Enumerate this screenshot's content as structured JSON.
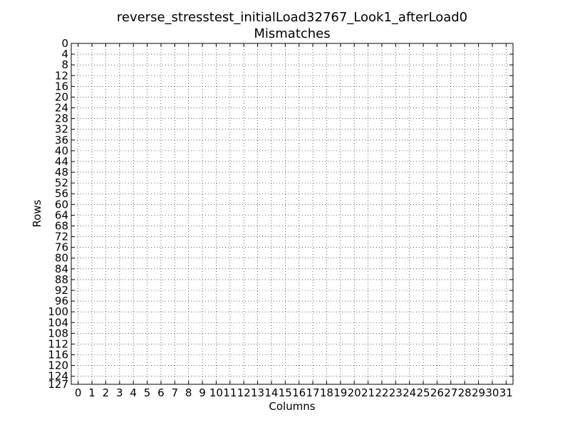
{
  "chart_data": {
    "type": "heatmap",
    "title_line1": "reverse_stresstest_initialLoad32767_Look1_afterLoad0",
    "title_line2": "Mismatches",
    "xlabel": "Columns",
    "ylabel": "Rows",
    "xlim": [
      -0.5,
      31.5
    ],
    "ylim": [
      127,
      0
    ],
    "x_ticks": [
      0,
      1,
      2,
      3,
      4,
      5,
      6,
      7,
      8,
      9,
      10,
      11,
      12,
      13,
      14,
      15,
      16,
      17,
      18,
      19,
      20,
      21,
      22,
      23,
      24,
      25,
      26,
      27,
      28,
      29,
      30,
      31
    ],
    "y_ticks": [
      0,
      4,
      8,
      12,
      16,
      20,
      24,
      28,
      32,
      36,
      40,
      44,
      48,
      52,
      56,
      60,
      64,
      68,
      72,
      76,
      80,
      84,
      88,
      92,
      96,
      100,
      104,
      108,
      112,
      116,
      120,
      124,
      127
    ],
    "grid": true,
    "values": []
  }
}
